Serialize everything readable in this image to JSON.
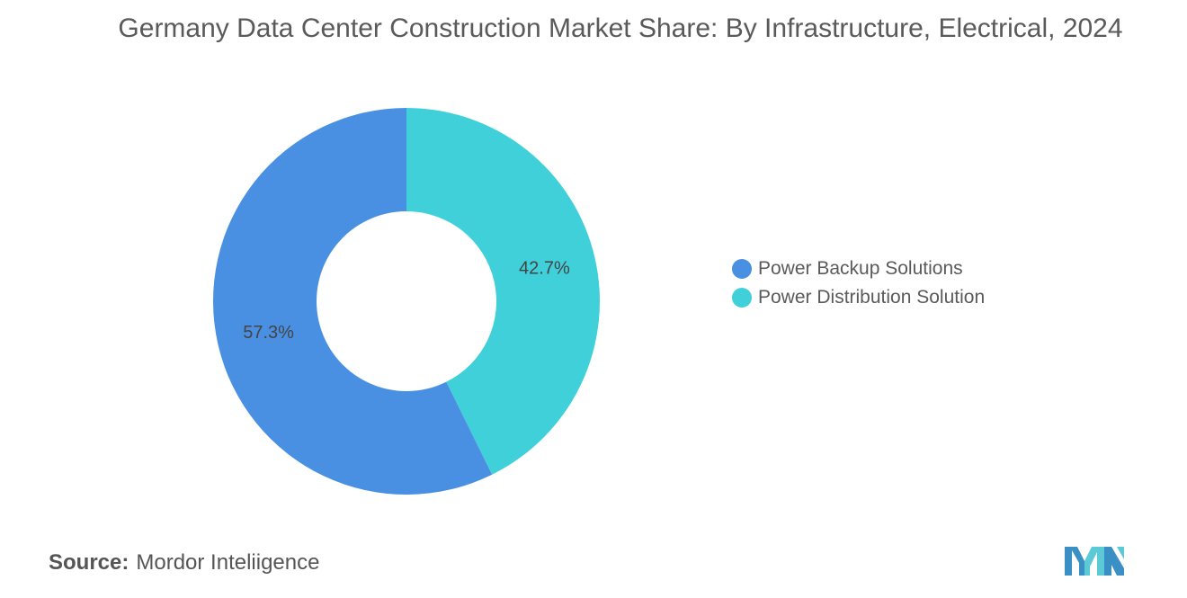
{
  "title": "Germany Data Center Construction Market Share: By Infrastructure, Electrical, 2024",
  "source": {
    "label": "Source:",
    "value": "Mordor Inteliigence"
  },
  "logo_icon": "mordor-intelligence-logo-icon",
  "colors": {
    "power_backup": "#4a90e2",
    "power_distribution": "#40d0da",
    "logo_dark": "#3a8fc4",
    "logo_light": "#5cc9d6"
  },
  "chart_data": {
    "type": "pie",
    "variant": "donut",
    "title": "Germany Data Center Construction Market Share: By Infrastructure, Electrical, 2024",
    "legend_position": "right",
    "series": [
      {
        "name": "Power Backup Solutions",
        "value": 57.3,
        "label": "57.3%",
        "color": "#4a90e2"
      },
      {
        "name": "Power Distribution Solution",
        "value": 42.7,
        "label": "42.7%",
        "color": "#40d0da"
      }
    ]
  }
}
